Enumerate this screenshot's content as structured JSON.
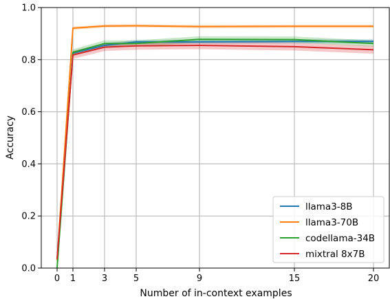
{
  "chart_data": {
    "type": "line",
    "xlabel": "Number of in-context examples",
    "ylabel": "Accuracy",
    "x": [
      0,
      1,
      3,
      5,
      9,
      15,
      20
    ],
    "xticks": [
      "0",
      "1",
      "3",
      "5",
      "9",
      "15",
      "20"
    ],
    "yticks": [
      "0.0",
      "0.2",
      "0.4",
      "0.6",
      "0.8",
      "1.0"
    ],
    "xlim": [
      -1,
      21
    ],
    "ylim": [
      0.0,
      1.0
    ],
    "grid": true,
    "legend_position": "lower-right",
    "series": [
      {
        "name": "llama3-8B",
        "color": "#1f77b4",
        "values": [
          0.03,
          0.825,
          0.855,
          0.868,
          0.868,
          0.87,
          0.87
        ],
        "band": 0.008
      },
      {
        "name": "llama3-70B",
        "color": "#ff7f0e",
        "values": [
          0.03,
          0.921,
          0.929,
          0.93,
          0.927,
          0.928,
          0.928
        ],
        "band": 0.006
      },
      {
        "name": "codellama-34B",
        "color": "#2ca02c",
        "values": [
          0.0,
          0.828,
          0.862,
          0.862,
          0.878,
          0.877,
          0.862
        ],
        "band": 0.012
      },
      {
        "name": "mixtral 8x7B",
        "color": "#d62728",
        "values": [
          0.035,
          0.818,
          0.848,
          0.853,
          0.855,
          0.85,
          0.838
        ],
        "band": 0.015
      }
    ]
  }
}
